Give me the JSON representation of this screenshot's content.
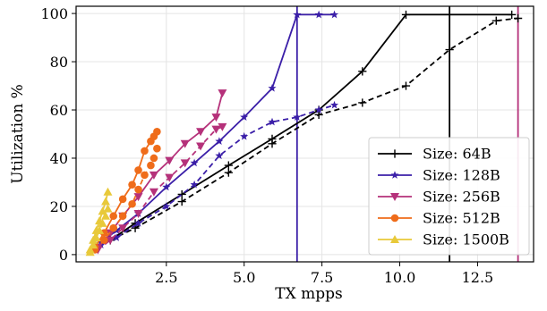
{
  "chart_data": {
    "type": "line",
    "title": "",
    "xlabel": "TX mpps",
    "ylabel": "Utilization %",
    "xlim": [
      -0.4,
      14.3
    ],
    "ylim": [
      -3,
      103
    ],
    "x_ticks": [
      2.5,
      5.0,
      7.5,
      10.0,
      12.5
    ],
    "x_tick_labels": [
      "2.5",
      "5.0",
      "7.5",
      "10.0",
      "12.5"
    ],
    "y_ticks": [
      0,
      20,
      40,
      60,
      80,
      100
    ],
    "y_tick_labels": [
      "0",
      "20",
      "40",
      "60",
      "80",
      "100"
    ],
    "grid": true,
    "legend_position": "bottom-right",
    "series": [
      {
        "name": "Size: 64B",
        "color": "#000000",
        "marker": "plus",
        "solid": {
          "x": [
            0.7,
            1.5,
            3.0,
            4.5,
            5.9,
            7.4,
            8.8,
            10.2,
            13.6
          ],
          "y": [
            6,
            13,
            25,
            37,
            48,
            60,
            76,
            99.5,
            99.5
          ]
        },
        "dashed": {
          "x": [
            0.7,
            1.5,
            3.0,
            4.5,
            5.9,
            7.4,
            8.8,
            10.2,
            11.6,
            13.1,
            13.8
          ],
          "y": [
            6,
            11,
            22,
            34,
            46,
            58,
            63,
            70,
            85,
            97,
            98
          ]
        },
        "vline": 11.6
      },
      {
        "name": "Size: 128B",
        "color": "#3b1fa8",
        "marker": "star",
        "solid": {
          "x": [
            0.4,
            0.9,
            1.6,
            2.5,
            3.4,
            4.2,
            5.0,
            5.9,
            6.7,
            7.4,
            7.9
          ],
          "y": [
            5,
            10,
            17,
            28,
            38,
            47,
            57,
            69,
            99.5,
            99.5,
            99.5
          ]
        },
        "dashed": {
          "x": [
            0.4,
            0.9,
            1.6,
            2.5,
            3.4,
            4.2,
            5.0,
            5.9,
            6.7,
            7.4,
            7.9
          ],
          "y": [
            4,
            7,
            13,
            20,
            29,
            41,
            49,
            55,
            57,
            60,
            62
          ]
        },
        "vline": 6.7
      },
      {
        "name": "Size: 256B",
        "color": "#b5317a",
        "marker": "triangle-down",
        "solid": {
          "x": [
            0.3,
            0.7,
            1.1,
            1.6,
            2.1,
            2.6,
            3.1,
            3.6,
            4.1,
            4.3
          ],
          "y": [
            3,
            9,
            16,
            24,
            33,
            39,
            46,
            51,
            57,
            67
          ]
        },
        "dashed": {
          "x": [
            0.3,
            0.7,
            1.1,
            1.6,
            2.1,
            2.6,
            3.1,
            3.6,
            4.1,
            4.3
          ],
          "y": [
            2,
            6,
            11,
            17,
            26,
            32,
            38,
            45,
            52,
            53
          ]
        },
        "vline": 13.8
      },
      {
        "name": "Size: 512B",
        "color": "#ef6c1a",
        "marker": "circle",
        "solid": {
          "x": [
            0.2,
            0.5,
            0.8,
            1.1,
            1.4,
            1.6,
            1.8,
            2.0,
            2.1,
            2.2
          ],
          "y": [
            3,
            9,
            16,
            23,
            29,
            35,
            43,
            47,
            49,
            51
          ]
        },
        "dashed": {
          "x": [
            0.2,
            0.5,
            0.8,
            1.1,
            1.4,
            1.6,
            1.8,
            2.0,
            2.1,
            2.2
          ],
          "y": [
            2,
            6,
            11,
            16,
            21,
            27,
            33,
            37,
            40,
            44
          ]
        },
        "vline": null
      },
      {
        "name": "Size: 1500B",
        "color": "#e8c93a",
        "marker": "triangle-up",
        "solid": {
          "x": [
            0.05,
            0.15,
            0.25,
            0.35,
            0.45,
            0.55,
            0.62
          ],
          "y": [
            2,
            6,
            10,
            14,
            18,
            22,
            26
          ]
        },
        "dashed": {
          "x": [
            0.05,
            0.15,
            0.25,
            0.35,
            0.45,
            0.55,
            0.62
          ],
          "y": [
            1,
            4,
            7,
            10,
            13,
            16,
            19
          ]
        },
        "vline": null
      }
    ]
  }
}
